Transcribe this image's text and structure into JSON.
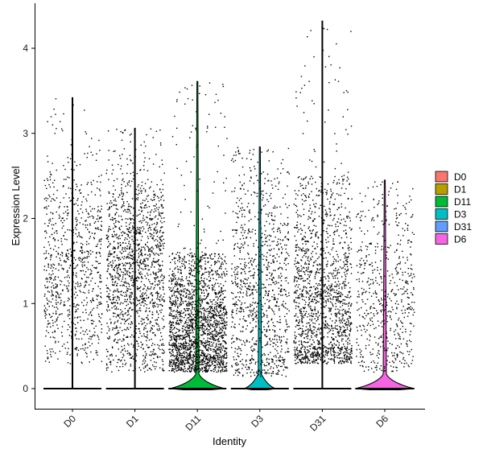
{
  "chart_data": {
    "type": "violin",
    "xlabel": "Identity",
    "ylabel": "Expression Level",
    "ylim": [
      -0.22,
      4.6
    ],
    "yticks": [
      0,
      1,
      2,
      3,
      4
    ],
    "grid": false,
    "legend_placement": "right",
    "categories": [
      "D0",
      "D1",
      "D11",
      "D3",
      "D31",
      "D6"
    ],
    "series": [
      {
        "name": "D0",
        "color": "#F8766D",
        "max": 3.42,
        "dense_band": [
          0.3,
          2.5
        ],
        "dense_center": 1.5,
        "violin_peak_width": 0.05,
        "n_points": 850
      },
      {
        "name": "D1",
        "color": "#B79F00",
        "max": 3.06,
        "dense_band": [
          0.2,
          2.35
        ],
        "dense_center": 1.5,
        "violin_peak_width": 0.05,
        "n_points": 1500
      },
      {
        "name": "D11",
        "color": "#00BA38",
        "max": 3.61,
        "dense_band": [
          0.2,
          1.6
        ],
        "dense_center": 0.6,
        "violin_peak_width": 0.88,
        "n_points": 2100
      },
      {
        "name": "D3",
        "color": "#00BFC4",
        "max": 2.84,
        "dense_band": [
          0.15,
          2.5
        ],
        "dense_center": 1.0,
        "violin_peak_width": 0.5,
        "n_points": 1000
      },
      {
        "name": "D31",
        "color": "#619CFF",
        "max": 4.32,
        "dense_band": [
          0.3,
          2.5
        ],
        "dense_center": 0.8,
        "violin_peak_width": 0.05,
        "n_points": 1600
      },
      {
        "name": "D6",
        "color": "#F564E3",
        "max": 2.45,
        "dense_band": [
          0.2,
          2.2
        ],
        "dense_center": 1.0,
        "violin_peak_width": 0.95,
        "n_points": 600
      }
    ]
  }
}
